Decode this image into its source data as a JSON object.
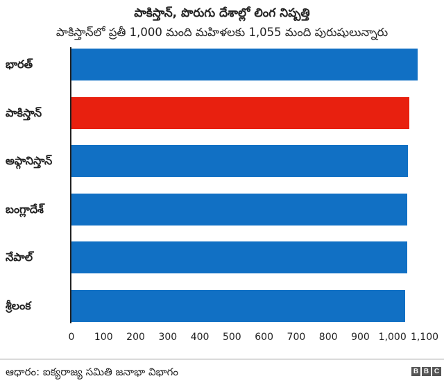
{
  "header": {
    "title": "పాకిస్తాన్, పొరుగు దేశాల్లో లింగ నిష్పత్తి",
    "subtitle": "పాకిస్తాన్‌లో ప్రతీ 1,000 మంది మహిళలకు 1,055 మంది పురుషులున్నారు"
  },
  "colors": {
    "default_bar": "#1170C4",
    "highlight_bar": "#E8200F",
    "text": "#222222"
  },
  "chart_data": {
    "type": "bar",
    "orientation": "horizontal",
    "title": "పాకిస్తాన్, పొరుగు దేశాల్లో లింగ నిష్పత్తి",
    "subtitle": "పాకిస్తాన్‌లో ప్రతీ 1,000 మంది మహిళలకు 1,055 మంది పురుషులున్నారు",
    "categories": [
      "భారత్",
      "పాకిస్తాన్",
      "అఫ్గానిస్తాన్",
      "బంగ్లాదేశ్",
      "నేపాల్",
      "శ్రీలంక"
    ],
    "values": [
      1080,
      1055,
      1050,
      1048,
      1048,
      1042
    ],
    "highlight": "పాకిస్తాన్",
    "xlabel": "",
    "ylabel": "",
    "xlim": [
      0,
      1100
    ],
    "x_ticks": [
      "0",
      "100",
      "200",
      "300",
      "400",
      "500",
      "600",
      "700",
      "800",
      "900",
      "1,000",
      "1,100"
    ],
    "grid": false,
    "legend": null
  },
  "footer": {
    "source": "ఆధారం: ఐక్యరాజ్య సమితి జనాభా విభాగం",
    "logo_letters": [
      "B",
      "B",
      "C"
    ]
  }
}
